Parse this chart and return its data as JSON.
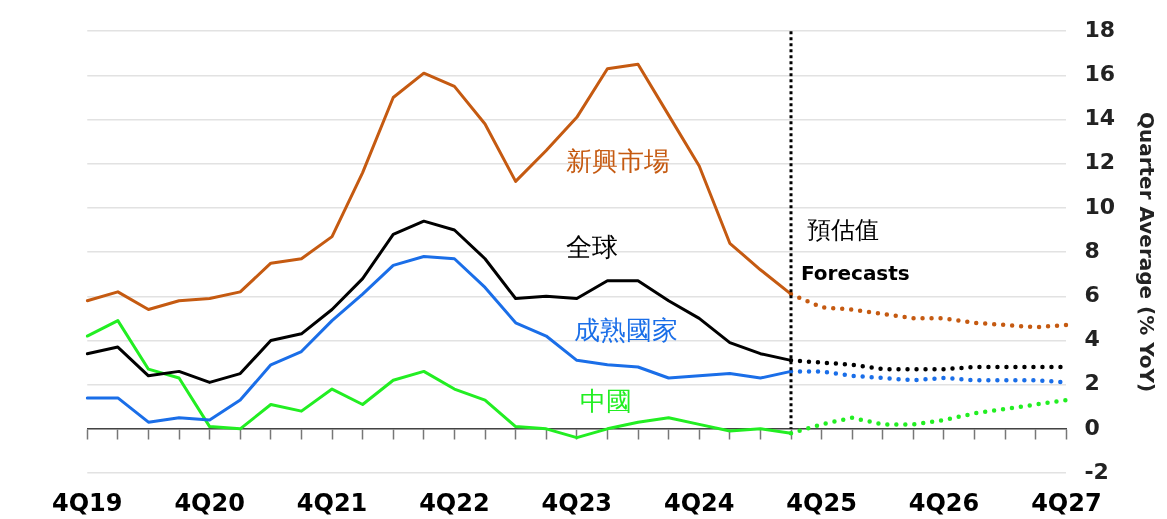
{
  "chart_data": {
    "type": "line",
    "ylabel": "Quarter Average (% YoY)",
    "categories": [
      "4Q19",
      null,
      null,
      null,
      "4Q20",
      null,
      null,
      null,
      "4Q21",
      null,
      null,
      null,
      "4Q22",
      null,
      null,
      null,
      "4Q23",
      null,
      null,
      null,
      "4Q24",
      null,
      null,
      null,
      "4Q25",
      null,
      null,
      null,
      "4Q26",
      null,
      null,
      null,
      "4Q27"
    ],
    "ylim": [
      -2,
      18
    ],
    "yticks": [
      -2,
      0,
      2,
      4,
      6,
      8,
      10,
      12,
      14,
      16,
      18
    ],
    "grid": "y",
    "legend": false,
    "marker": "none",
    "series": [
      {
        "name": "新興市場",
        "color": "#c55a11",
        "line_style": "solid",
        "values": [
          5.8,
          6.2,
          5.4,
          5.8,
          5.9,
          6.2,
          7.5,
          7.7,
          8.7,
          11.6,
          15.0,
          16.1,
          15.5,
          13.8,
          11.2,
          12.6,
          14.1,
          16.3,
          16.5,
          14.2,
          11.9,
          8.4,
          7.2,
          6.1,
          null,
          null,
          null,
          null,
          null,
          null,
          null,
          null,
          null
        ]
      },
      {
        "name": "全球",
        "color": "#000000",
        "line_style": "solid",
        "values": [
          3.4,
          3.7,
          2.4,
          2.6,
          2.1,
          2.5,
          4.0,
          4.3,
          5.4,
          6.8,
          8.8,
          9.4,
          9.0,
          7.7,
          5.9,
          6.0,
          5.9,
          6.7,
          6.7,
          5.8,
          5.0,
          3.9,
          3.4,
          3.1,
          null,
          null,
          null,
          null,
          null,
          null,
          null,
          null,
          null
        ]
      },
      {
        "name": "成熟國家",
        "color": "#1a6ee8",
        "line_style": "solid",
        "values": [
          1.4,
          1.4,
          0.3,
          0.5,
          0.4,
          1.3,
          2.9,
          3.5,
          4.9,
          6.1,
          7.4,
          7.8,
          7.7,
          6.4,
          4.8,
          4.2,
          3.1,
          2.9,
          2.8,
          2.3,
          2.4,
          2.5,
          2.3,
          2.6,
          null,
          null,
          null,
          null,
          null,
          null,
          null,
          null,
          null
        ]
      },
      {
        "name": "中國",
        "color": "#22ee22",
        "line_style": "solid",
        "values": [
          4.2,
          4.9,
          2.7,
          2.3,
          0.1,
          0.0,
          1.1,
          0.8,
          1.8,
          1.1,
          2.2,
          2.6,
          1.8,
          1.3,
          0.1,
          0.0,
          -0.4,
          0.0,
          0.3,
          0.5,
          0.2,
          -0.1,
          0.0,
          -0.2,
          null,
          null,
          null,
          null,
          null,
          null,
          null,
          null,
          null
        ]
      },
      {
        "color": "#c55a11",
        "line_style": "dotted",
        "values": [
          null,
          null,
          null,
          null,
          null,
          null,
          null,
          null,
          null,
          null,
          null,
          null,
          null,
          null,
          null,
          null,
          null,
          null,
          null,
          null,
          null,
          null,
          null,
          6.1,
          5.5,
          5.4,
          5.2,
          5.0,
          5.0,
          4.8,
          4.7,
          4.6,
          4.7
        ]
      },
      {
        "color": "#000000",
        "line_style": "dotted",
        "values": [
          null,
          null,
          null,
          null,
          null,
          null,
          null,
          null,
          null,
          null,
          null,
          null,
          null,
          null,
          null,
          null,
          null,
          null,
          null,
          null,
          null,
          null,
          null,
          3.1,
          3.0,
          2.9,
          2.7,
          2.7,
          2.7,
          2.8,
          2.8,
          2.8,
          2.8
        ]
      },
      {
        "color": "#1a6ee8",
        "line_style": "dotted",
        "values": [
          null,
          null,
          null,
          null,
          null,
          null,
          null,
          null,
          null,
          null,
          null,
          null,
          null,
          null,
          null,
          null,
          null,
          null,
          null,
          null,
          null,
          null,
          null,
          2.6,
          2.6,
          2.4,
          2.3,
          2.2,
          2.3,
          2.2,
          2.2,
          2.2,
          2.1
        ]
      },
      {
        "color": "#22ee22",
        "line_style": "dotted",
        "values": [
          null,
          null,
          null,
          null,
          null,
          null,
          null,
          null,
          null,
          null,
          null,
          null,
          null,
          null,
          null,
          null,
          null,
          null,
          null,
          null,
          null,
          null,
          null,
          -0.2,
          0.2,
          0.5,
          0.2,
          0.2,
          0.4,
          0.7,
          0.9,
          1.1,
          1.3
        ]
      }
    ],
    "ref_lines": [
      {
        "axis": "x",
        "label": "預估值",
        "color": "#000000",
        "line_style": "dotted"
      }
    ],
    "annotations": [
      "Forecasts"
    ]
  }
}
